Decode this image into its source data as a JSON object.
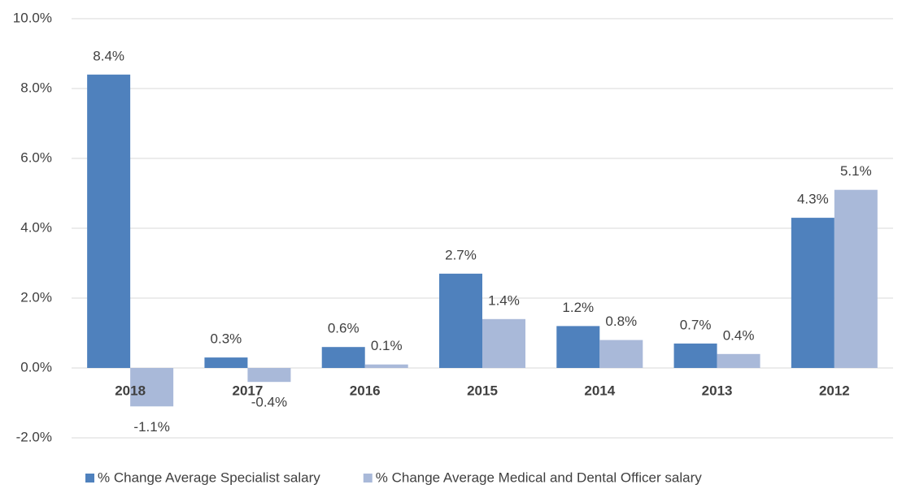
{
  "chart_data": {
    "type": "bar",
    "categories": [
      "2018",
      "2017",
      "2016",
      "2015",
      "2014",
      "2013",
      "2012"
    ],
    "series": [
      {
        "name": "% Change Average Specialist salary",
        "color": "#4f81bd",
        "values": [
          8.4,
          0.3,
          0.6,
          2.7,
          1.2,
          0.7,
          4.3
        ],
        "value_labels": [
          "8.4%",
          "0.3%",
          "0.6%",
          "2.7%",
          "1.2%",
          "0.7%",
          "4.3%"
        ]
      },
      {
        "name": "% Change Average Medical and Dental Officer salary",
        "color": "#a9b9d9",
        "values": [
          -1.1,
          -0.4,
          0.1,
          1.4,
          0.8,
          0.4,
          5.1
        ],
        "value_labels": [
          "-1.1%",
          "-0.4%",
          "0.1%",
          "1.4%",
          "0.8%",
          "0.4%",
          "5.1%"
        ]
      }
    ],
    "ylim": [
      -2,
      10
    ],
    "yticks": [
      {
        "value": -2,
        "label": "-2.0%"
      },
      {
        "value": 0,
        "label": "0.0%"
      },
      {
        "value": 2,
        "label": "2.0%"
      },
      {
        "value": 4,
        "label": "4.0%"
      },
      {
        "value": 6,
        "label": "6.0%"
      },
      {
        "value": 8,
        "label": "8.0%"
      },
      {
        "value": 10,
        "label": "10.0%"
      }
    ],
    "grid": true,
    "legend": "bottom"
  }
}
